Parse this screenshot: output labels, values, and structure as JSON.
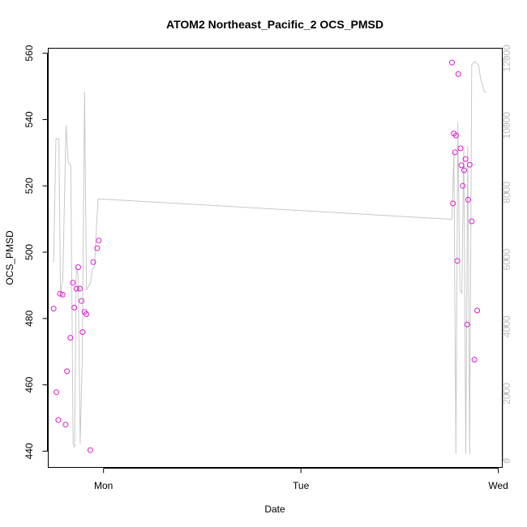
{
  "chart_data": {
    "type": "scatter",
    "title": "ATOM2 Northeast_Pacific_2 OCS_PMSD",
    "xlabel": "Date",
    "ylabel": "OCS_PMSD",
    "x_ticks": [
      "Mon",
      "Tue",
      "Wed"
    ],
    "y_ticks": [
      "440",
      "460",
      "480",
      "500",
      "520",
      "540",
      "560"
    ],
    "y2_ticks": [
      "0",
      "2000",
      "4000",
      "6000",
      "8000",
      "10000",
      "12000"
    ],
    "xlim_days_from_mon": [
      -0.28,
      2.02
    ],
    "ylim": [
      435.1,
      561.5
    ],
    "y2lim": [
      -200,
      12300
    ],
    "colors": {
      "points": "#e21ad4",
      "line": "#c8c8c8",
      "right_axis": "#bdbdbd",
      "text": "#000000"
    },
    "series": [
      {
        "kind": "points",
        "x_days_from_mon": [
          -0.253,
          -0.239,
          -0.229,
          -0.221,
          -0.207,
          -0.192,
          -0.185,
          -0.168,
          -0.155,
          -0.148,
          -0.137,
          -0.128,
          -0.12,
          -0.112,
          -0.106,
          -0.096,
          -0.087,
          -0.067,
          -0.052,
          -0.032,
          -0.024,
          1.765,
          1.77,
          1.775,
          1.781,
          1.786,
          1.792,
          1.797,
          1.808,
          1.813,
          1.82,
          1.827,
          1.834,
          1.842,
          1.847,
          1.855,
          1.865,
          1.879,
          1.893
        ],
        "y": [
          483,
          457.8,
          449.4,
          487.5,
          487.2,
          448.0,
          464.1,
          474.2,
          490.8,
          483.3,
          489.0,
          495.5,
          489.0,
          485.3,
          475.9,
          482.0,
          481.3,
          440.3,
          497.0,
          501.2,
          503.5,
          557.2,
          514.7,
          535.8,
          530.1,
          535.2,
          497.4,
          553.7,
          531.3,
          526.2,
          520.0,
          524.7,
          528.1,
          478.2,
          515.8,
          526.4,
          509.3,
          467.6,
          482.4
        ]
      },
      {
        "kind": "line",
        "axis": "right",
        "x_days_from_mon": [
          -0.253,
          -0.241,
          -0.226,
          -0.218,
          -0.206,
          -0.19,
          -0.179,
          -0.166,
          -0.154,
          -0.146,
          -0.138,
          -0.128,
          -0.118,
          -0.108,
          -0.096,
          -0.086,
          -0.066,
          -0.056,
          -0.046,
          -0.028,
          -0.01,
          0.0,
          1.755,
          1.765,
          1.775,
          1.785,
          1.795,
          1.805,
          1.815,
          1.825,
          1.835,
          1.845,
          1.855,
          1.865,
          1.88,
          1.9,
          1.91,
          1.93,
          1.94
        ],
        "y2": [
          5900,
          9600,
          9600,
          5000,
          5400,
          10000,
          8900,
          8800,
          500,
          400,
          5800,
          5500,
          500,
          3000,
          11000,
          5100,
          5300,
          5700,
          5800,
          7800,
          7800,
          7800,
          7200,
          7200,
          9200,
          200,
          10100,
          5100,
          5000,
          9400,
          200,
          9400,
          200,
          11800,
          11900,
          11800,
          11400,
          11000,
          11000
        ]
      }
    ]
  }
}
